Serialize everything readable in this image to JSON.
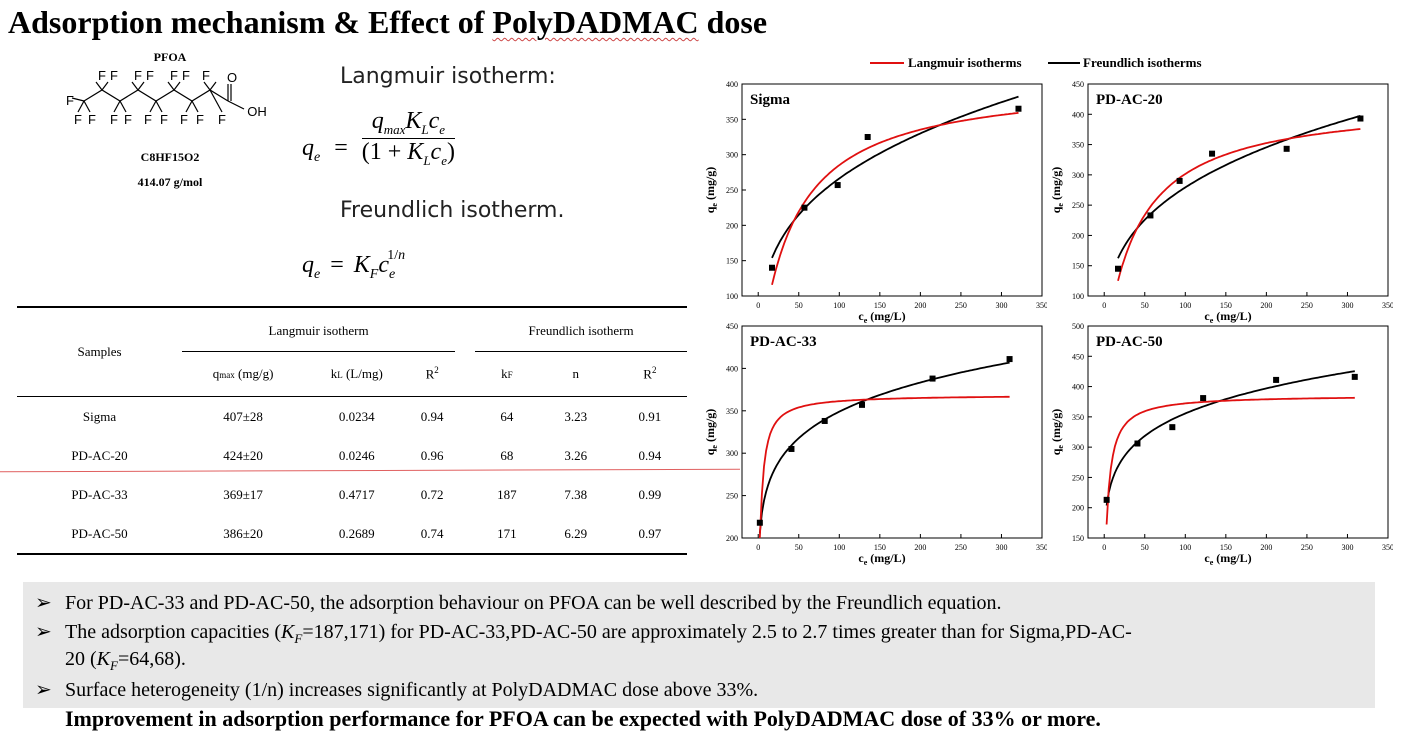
{
  "title": {
    "prefix": "Adsorption mechanism & Effect of ",
    "underlined": "PolyDADMAC",
    "suffix": " dose"
  },
  "molecule": {
    "name": "PFOA",
    "formula": "C8HF15O2",
    "mass": "414.07 g/mol"
  },
  "equations": {
    "langmuir_heading": "Langmuir isotherm:",
    "freundlich_heading": "Freundlich isotherm."
  },
  "table": {
    "col_samples": "Samples",
    "group_langmuir": "Langmuir isotherm",
    "group_freundlich": "Freundlich isotherm",
    "rows": [
      {
        "sample": "Sigma",
        "qmax": "407±28",
        "kl": "0.0234",
        "r2l": "0.94",
        "kf": "64",
        "n": "3.23",
        "r2f": "0.91"
      },
      {
        "sample": "PD-AC-20",
        "qmax": "424±20",
        "kl": "0.0246",
        "r2l": "0.96",
        "kf": "68",
        "n": "3.26",
        "r2f": "0.94"
      },
      {
        "sample": "PD-AC-33",
        "qmax": "369±17",
        "kl": "0.4717",
        "r2l": "0.72",
        "kf": "187",
        "n": "7.38",
        "r2f": "0.99"
      },
      {
        "sample": "PD-AC-50",
        "qmax": "386±20",
        "kl": "0.2689",
        "r2l": "0.74",
        "kf": "171",
        "n": "6.29",
        "r2f": "0.97"
      }
    ]
  },
  "legend": {
    "langmuir": "Langmuir isotherms",
    "freundlich": "Freundlich isotherms"
  },
  "colors": {
    "langmuir": "#e01010",
    "freundlich": "#000000",
    "bullet_bg": "#e8e8e8"
  },
  "chart_data": [
    {
      "type": "scatter",
      "title": "Sigma",
      "xlabel": "ce (mg/L)",
      "ylabel": "qe (mg/g)",
      "xlim": [
        -20,
        350
      ],
      "ylim": [
        100,
        400
      ],
      "xticks": [
        0,
        50,
        100,
        150,
        200,
        250,
        300,
        350
      ],
      "yticks": [
        100,
        150,
        200,
        250,
        300,
        350,
        400
      ],
      "points": [
        [
          17,
          140
        ],
        [
          57,
          225
        ],
        [
          98,
          257
        ],
        [
          135,
          325
        ],
        [
          321,
          365
        ]
      ],
      "langmuir": {
        "qmax": 407,
        "KL": 0.0234
      },
      "freundlich": {
        "KF": 64,
        "n": 3.23
      }
    },
    {
      "type": "scatter",
      "title": "PD-AC-20",
      "xlabel": "ce (mg/L)",
      "ylabel": "qe (mg/g)",
      "xlim": [
        -20,
        350
      ],
      "ylim": [
        100,
        450
      ],
      "xticks": [
        0,
        50,
        100,
        150,
        200,
        250,
        300,
        350
      ],
      "yticks": [
        100,
        150,
        200,
        250,
        300,
        350,
        400,
        450
      ],
      "points": [
        [
          17,
          145
        ],
        [
          57,
          233
        ],
        [
          93,
          290
        ],
        [
          133,
          335
        ],
        [
          225,
          343
        ],
        [
          316,
          393
        ]
      ],
      "langmuir": {
        "qmax": 424,
        "KL": 0.0246
      },
      "freundlich": {
        "KF": 68,
        "n": 3.26
      }
    },
    {
      "type": "scatter",
      "title": "PD-AC-33",
      "xlabel": "ce (mg/L)",
      "ylabel": "qe (mg/g)",
      "xlim": [
        -20,
        350
      ],
      "ylim": [
        200,
        450
      ],
      "xticks": [
        0,
        50,
        100,
        150,
        200,
        250,
        300,
        350
      ],
      "yticks": [
        200,
        250,
        300,
        350,
        400,
        450
      ],
      "points": [
        [
          2,
          218
        ],
        [
          41,
          305
        ],
        [
          82,
          338
        ],
        [
          128,
          357
        ],
        [
          215,
          388
        ],
        [
          310,
          411
        ]
      ],
      "langmuir": {
        "qmax": 369,
        "KL": 0.4717
      },
      "freundlich": {
        "KF": 187,
        "n": 7.38
      }
    },
    {
      "type": "scatter",
      "title": "PD-AC-50",
      "xlabel": "ce (mg/L)",
      "ylabel": "qe (mg/g)",
      "xlim": [
        -20,
        350
      ],
      "ylim": [
        150,
        500
      ],
      "xticks": [
        0,
        50,
        100,
        150,
        200,
        250,
        300,
        350
      ],
      "yticks": [
        150,
        200,
        250,
        300,
        350,
        400,
        450,
        500
      ],
      "points": [
        [
          3,
          213
        ],
        [
          41,
          306
        ],
        [
          84,
          333
        ],
        [
          122,
          381
        ],
        [
          212,
          411
        ],
        [
          309,
          416
        ]
      ],
      "langmuir": {
        "qmax": 386,
        "KL": 0.2689
      },
      "freundlich": {
        "KF": 171,
        "n": 6.29
      }
    }
  ],
  "bullets": {
    "b1": "For PD-AC-33 and PD-AC-50, the adsorption behaviour on PFOA can be well described by the Freundlich equation.",
    "b2a": "The adsorption capacities (",
    "b2kf": "=187,171) for PD-AC-33,PD-AC-50 are approximately 2.5 to 2.7 times greater than for Sigma,PD-AC-",
    "b2b": "20 (",
    "b2kf2": "=64,68).",
    "b3": "Surface heterogeneity (1/n) increases significantly at PolyDADMAC dose above 33%."
  },
  "conclusion": "Improvement in adsorption performance for PFOA can be expected with  PolyDADMAC dose of 33% or more."
}
